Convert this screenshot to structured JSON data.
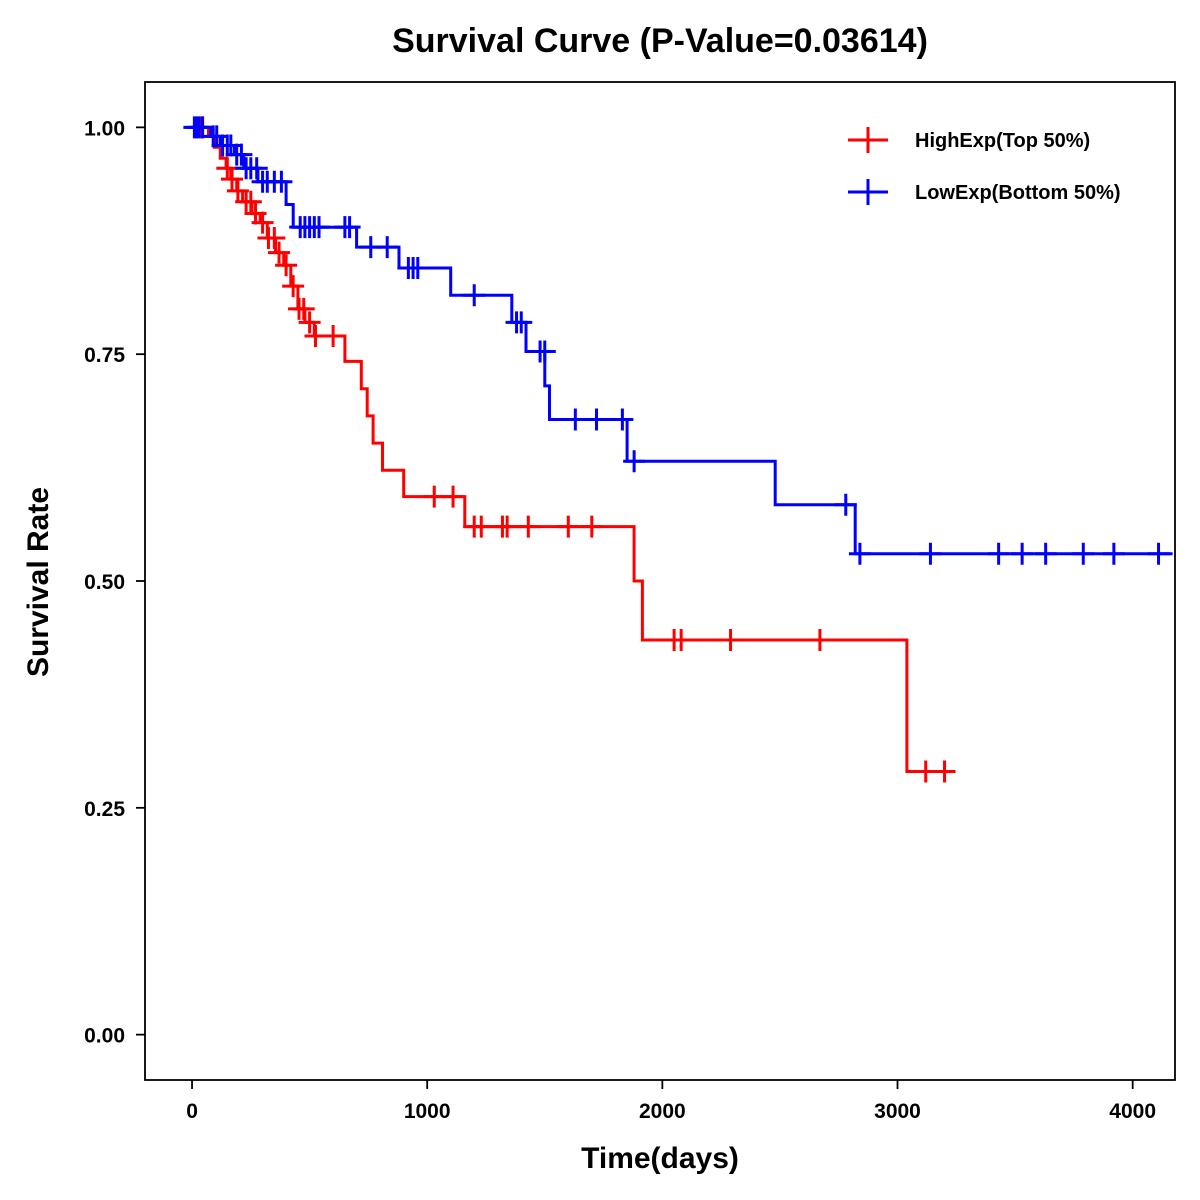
{
  "chart_data": {
    "type": "line",
    "subtype": "kaplan-meier step survival curve",
    "title": "Survival Curve (P-Value=0.03614)",
    "xlabel": "Time(days)",
    "ylabel": "Survival Rate",
    "xlim": [
      -200,
      4180
    ],
    "ylim": [
      -0.05,
      1.05
    ],
    "xticks": [
      0,
      1000,
      2000,
      3000,
      4000
    ],
    "xtick_labels": [
      "0",
      "1000",
      "2000",
      "3000",
      "4000"
    ],
    "yticks": [
      0,
      0.25,
      0.5,
      0.75,
      1
    ],
    "ytick_labels": [
      "0.00",
      "0.25",
      "0.50",
      "0.75",
      "1.00"
    ],
    "grid": false,
    "legend_position": "top-right",
    "series": [
      {
        "name": "HighExp(Top 50%)",
        "color": "#ff0000",
        "steps": [
          [
            0,
            1.0
          ],
          [
            70,
            0.99
          ],
          [
            95,
            0.978
          ],
          [
            120,
            0.966
          ],
          [
            145,
            0.955
          ],
          [
            165,
            0.943
          ],
          [
            190,
            0.93
          ],
          [
            215,
            0.918
          ],
          [
            255,
            0.905
          ],
          [
            290,
            0.895
          ],
          [
            320,
            0.878
          ],
          [
            355,
            0.862
          ],
          [
            390,
            0.848
          ],
          [
            420,
            0.825
          ],
          [
            450,
            0.8
          ],
          [
            480,
            0.785
          ],
          [
            520,
            0.77
          ],
          [
            650,
            0.742
          ],
          [
            720,
            0.712
          ],
          [
            745,
            0.682
          ],
          [
            770,
            0.652
          ],
          [
            810,
            0.622
          ],
          [
            900,
            0.593
          ],
          [
            1160,
            0.56
          ],
          [
            1880,
            0.5
          ],
          [
            1915,
            0.435
          ],
          [
            3040,
            0.29
          ],
          [
            3240,
            0.29
          ]
        ],
        "censor": [
          [
            40,
            1.0
          ],
          [
            150,
            0.955
          ],
          [
            170,
            0.943
          ],
          [
            195,
            0.93
          ],
          [
            230,
            0.918
          ],
          [
            250,
            0.918
          ],
          [
            270,
            0.905
          ],
          [
            300,
            0.895
          ],
          [
            325,
            0.878
          ],
          [
            350,
            0.878
          ],
          [
            370,
            0.862
          ],
          [
            400,
            0.848
          ],
          [
            430,
            0.825
          ],
          [
            455,
            0.8
          ],
          [
            475,
            0.8
          ],
          [
            500,
            0.785
          ],
          [
            525,
            0.77
          ],
          [
            600,
            0.77
          ],
          [
            1030,
            0.593
          ],
          [
            1110,
            0.593
          ],
          [
            1200,
            0.56
          ],
          [
            1230,
            0.56
          ],
          [
            1320,
            0.56
          ],
          [
            1340,
            0.56
          ],
          [
            1430,
            0.56
          ],
          [
            1600,
            0.56
          ],
          [
            1700,
            0.56
          ],
          [
            2050,
            0.435
          ],
          [
            2080,
            0.435
          ],
          [
            2290,
            0.435
          ],
          [
            2670,
            0.435
          ],
          [
            3120,
            0.29
          ],
          [
            3200,
            0.29
          ]
        ]
      },
      {
        "name": "LowExp(Bottom 50%)",
        "color": "#0000ff",
        "steps": [
          [
            0,
            1.0
          ],
          [
            80,
            0.99
          ],
          [
            120,
            0.98
          ],
          [
            180,
            0.97
          ],
          [
            220,
            0.955
          ],
          [
            280,
            0.94
          ],
          [
            400,
            0.915
          ],
          [
            430,
            0.89
          ],
          [
            700,
            0.868
          ],
          [
            880,
            0.845
          ],
          [
            1100,
            0.815
          ],
          [
            1360,
            0.785
          ],
          [
            1420,
            0.753
          ],
          [
            1500,
            0.715
          ],
          [
            1520,
            0.678
          ],
          [
            1850,
            0.632
          ],
          [
            2480,
            0.584
          ],
          [
            2820,
            0.53
          ],
          [
            4170,
            0.53
          ]
        ],
        "censor": [
          [
            10,
            1.0
          ],
          [
            20,
            1.0
          ],
          [
            30,
            1.0
          ],
          [
            45,
            1.0
          ],
          [
            90,
            0.99
          ],
          [
            105,
            0.99
          ],
          [
            130,
            0.98
          ],
          [
            150,
            0.98
          ],
          [
            165,
            0.98
          ],
          [
            190,
            0.97
          ],
          [
            210,
            0.97
          ],
          [
            230,
            0.955
          ],
          [
            250,
            0.955
          ],
          [
            275,
            0.955
          ],
          [
            300,
            0.94
          ],
          [
            320,
            0.94
          ],
          [
            350,
            0.94
          ],
          [
            380,
            0.94
          ],
          [
            460,
            0.89
          ],
          [
            480,
            0.89
          ],
          [
            500,
            0.89
          ],
          [
            520,
            0.89
          ],
          [
            540,
            0.89
          ],
          [
            650,
            0.89
          ],
          [
            670,
            0.89
          ],
          [
            760,
            0.868
          ],
          [
            830,
            0.868
          ],
          [
            920,
            0.845
          ],
          [
            940,
            0.845
          ],
          [
            960,
            0.845
          ],
          [
            1200,
            0.815
          ],
          [
            1380,
            0.785
          ],
          [
            1400,
            0.785
          ],
          [
            1480,
            0.753
          ],
          [
            1500,
            0.753
          ],
          [
            1630,
            0.678
          ],
          [
            1720,
            0.678
          ],
          [
            1830,
            0.678
          ],
          [
            1880,
            0.632
          ],
          [
            2780,
            0.584
          ],
          [
            2840,
            0.53
          ],
          [
            3140,
            0.53
          ],
          [
            3430,
            0.53
          ],
          [
            3530,
            0.53
          ],
          [
            3630,
            0.53
          ],
          [
            3790,
            0.53
          ],
          [
            3920,
            0.53
          ],
          [
            4110,
            0.53
          ]
        ]
      }
    ]
  }
}
